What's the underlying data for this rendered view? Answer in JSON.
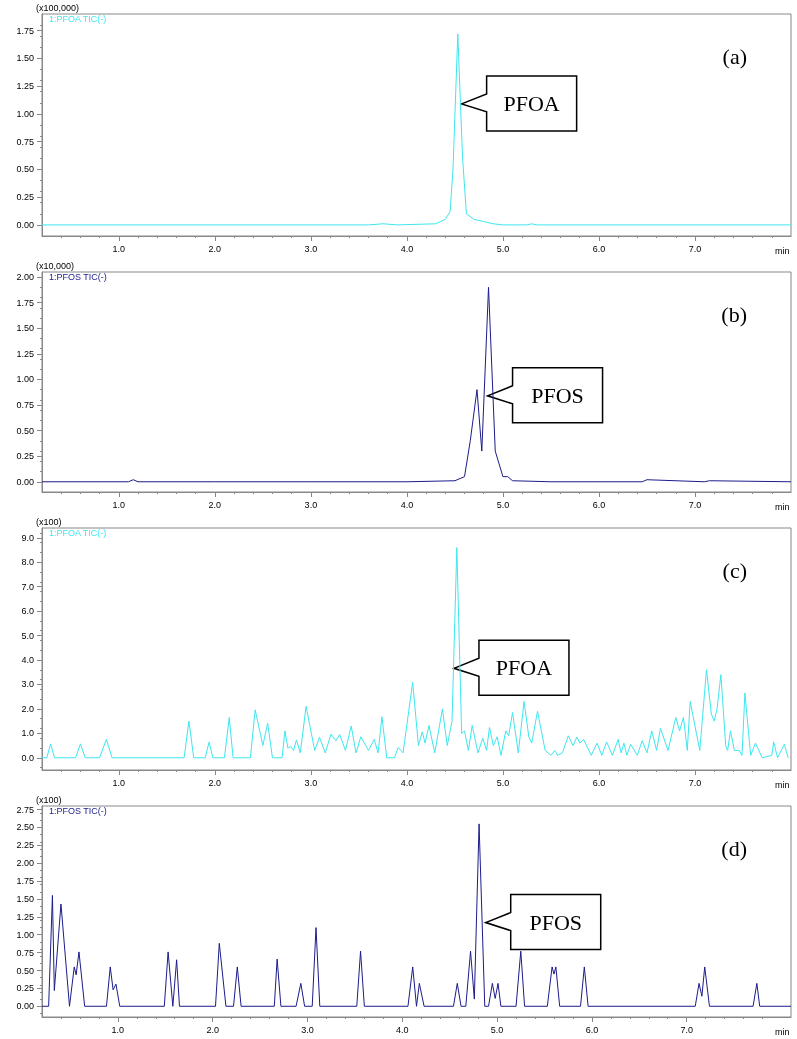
{
  "chart_data": [
    {
      "type": "line",
      "xlabel": "min",
      "ylabel": "(x100,000)",
      "legend": "top left",
      "marker": "none",
      "line_style": "solid",
      "grid": false,
      "xlim": [
        0.2,
        8.0
      ],
      "xticks": [
        {
          "value": 1,
          "label": "1.0"
        },
        {
          "value": 2,
          "label": "2.0"
        },
        {
          "value": 3,
          "label": "3.0"
        },
        {
          "value": 4,
          "label": "4.0"
        },
        {
          "value": 5,
          "label": "5.0"
        },
        {
          "value": 6,
          "label": "6.0"
        },
        {
          "value": 7,
          "label": "7.0"
        }
      ],
      "ylim": [
        -0.1,
        1.9
      ],
      "yticks": [
        {
          "value": 0,
          "label": "0.00"
        },
        {
          "value": 0.25,
          "label": "0.25"
        },
        {
          "value": 0.5,
          "label": "0.50"
        },
        {
          "value": 0.75,
          "label": "0.75"
        },
        {
          "value": 1,
          "label": "1.00"
        },
        {
          "value": 1.25,
          "label": "1.25"
        },
        {
          "value": 1.5,
          "label": "1.50"
        },
        {
          "value": 1.75,
          "label": "1.75"
        }
      ],
      "annotations": [
        "(a)",
        {
          "text": "PFOA",
          "x": 4.57,
          "y": 1.09
        }
      ],
      "series": [
        {
          "name": "1:PFOA TIC(-)",
          "color": "#3ee6ee",
          "x": [
            0.2,
            1.0,
            2.0,
            3.0,
            3.6,
            3.75,
            3.9,
            4.3,
            4.4,
            4.45,
            4.48,
            4.53,
            4.58,
            4.62,
            4.7,
            4.8,
            4.9,
            5.0,
            5.25,
            5.3,
            5.35,
            6.0,
            7.0,
            8.0
          ],
          "values": [
            0,
            0,
            0,
            0,
            0,
            0.01,
            0,
            0.01,
            0.05,
            0.12,
            0.5,
            1.72,
            0.6,
            0.1,
            0.05,
            0.03,
            0.01,
            0,
            0,
            0.01,
            0,
            0,
            0,
            0
          ]
        }
      ]
    },
    {
      "type": "line",
      "xlabel": "min",
      "ylabel": "(x10,000)",
      "legend": "top left",
      "marker": "none",
      "line_style": "solid",
      "grid": false,
      "xlim": [
        0.2,
        8.0
      ],
      "xticks": [
        {
          "value": 1,
          "label": "1.0"
        },
        {
          "value": 2,
          "label": "2.0"
        },
        {
          "value": 3,
          "label": "3.0"
        },
        {
          "value": 4,
          "label": "4.0"
        },
        {
          "value": 5,
          "label": "5.0"
        },
        {
          "value": 6,
          "label": "6.0"
        },
        {
          "value": 7,
          "label": "7.0"
        }
      ],
      "ylim": [
        -0.1,
        2.05
      ],
      "yticks": [
        {
          "value": 0,
          "label": "0.00"
        },
        {
          "value": 0.25,
          "label": "0.25"
        },
        {
          "value": 0.5,
          "label": "0.50"
        },
        {
          "value": 0.75,
          "label": "0.75"
        },
        {
          "value": 1,
          "label": "1.00"
        },
        {
          "value": 1.25,
          "label": "1.25"
        },
        {
          "value": 1.5,
          "label": "1.50"
        },
        {
          "value": 1.75,
          "label": "1.75"
        },
        {
          "value": 2,
          "label": "2.00"
        }
      ],
      "annotations": [
        "(b)",
        {
          "text": "PFOS",
          "x": 4.84,
          "y": 0.84
        }
      ],
      "series": [
        {
          "name": "1:PFOS TIC(-)",
          "color": "#1c1c8a",
          "x": [
            0.2,
            1.1,
            1.15,
            1.2,
            2.0,
            3.0,
            4.0,
            4.5,
            4.6,
            4.66,
            4.73,
            4.78,
            4.85,
            4.92,
            5.0,
            5.05,
            5.1,
            5.5,
            6.0,
            6.45,
            6.5,
            7.1,
            7.15,
            8.0
          ],
          "values": [
            0,
            0,
            0.02,
            0,
            0,
            0,
            0,
            0.01,
            0.05,
            0.4,
            0.9,
            0.3,
            1.9,
            0.3,
            0.05,
            0.05,
            0.01,
            0,
            0,
            0,
            0.02,
            0,
            0.01,
            0
          ]
        }
      ]
    },
    {
      "type": "line",
      "xlabel": "min",
      "ylabel": "(x100)",
      "legend": "top left",
      "marker": "none",
      "line_style": "solid",
      "grid": false,
      "xlim": [
        0.2,
        8.0
      ],
      "xticks": [
        {
          "value": 1,
          "label": "1.0"
        },
        {
          "value": 2,
          "label": "2.0"
        },
        {
          "value": 3,
          "label": "3.0"
        },
        {
          "value": 4,
          "label": "4.0"
        },
        {
          "value": 5,
          "label": "5.0"
        },
        {
          "value": 6,
          "label": "6.0"
        },
        {
          "value": 7,
          "label": "7.0"
        }
      ],
      "ylim": [
        -0.5,
        9.4
      ],
      "yticks": [
        {
          "value": 0,
          "label": "0.0"
        },
        {
          "value": 1,
          "label": "1.0"
        },
        {
          "value": 2,
          "label": "2.0"
        },
        {
          "value": 3,
          "label": "3.0"
        },
        {
          "value": 4,
          "label": "4.0"
        },
        {
          "value": 5,
          "label": "5.0"
        },
        {
          "value": 6,
          "label": "6.0"
        },
        {
          "value": 7,
          "label": "7.0"
        },
        {
          "value": 8,
          "label": "8.0"
        },
        {
          "value": 9,
          "label": "9.0"
        }
      ],
      "annotations": [
        "(c)",
        {
          "text": "PFOA",
          "x": 4.49,
          "y": 3.66
        }
      ],
      "series": [
        {
          "name": "1:PFOA TIC(-)",
          "color": "#3ee6ee",
          "x": [
            0.2,
            0.25,
            0.29,
            0.33,
            0.55,
            0.6,
            0.65,
            0.8,
            0.87,
            0.93,
            1.68,
            1.73,
            1.78,
            1.9,
            1.94,
            1.98,
            2.1,
            2.15,
            2.19,
            2.37,
            2.42,
            2.5,
            2.55,
            2.6,
            2.7,
            2.73,
            2.76,
            2.79,
            2.82,
            2.85,
            2.89,
            2.95,
            3.04,
            3.09,
            3.15,
            3.21,
            3.26,
            3.3,
            3.36,
            3.42,
            3.47,
            3.52,
            3.6,
            3.66,
            3.7,
            3.74,
            3.79,
            3.87,
            3.91,
            3.96,
            4.06,
            4.12,
            4.16,
            4.19,
            4.23,
            4.29,
            4.37,
            4.42,
            4.47,
            4.52,
            4.57,
            4.6,
            4.64,
            4.68,
            4.74,
            4.79,
            4.83,
            4.86,
            4.9,
            4.94,
            4.98,
            5.03,
            5.06,
            5.1,
            5.16,
            5.22,
            5.27,
            5.3,
            5.36,
            5.44,
            5.5,
            5.54,
            5.57,
            5.62,
            5.68,
            5.73,
            5.77,
            5.8,
            5.84,
            5.92,
            5.98,
            6.03,
            6.08,
            6.14,
            6.2,
            6.23,
            6.26,
            6.29,
            6.33,
            6.4,
            6.45,
            6.5,
            6.55,
            6.6,
            6.64,
            6.72,
            6.8,
            6.84,
            6.88,
            6.92,
            6.95,
            7.05,
            7.12,
            7.17,
            7.2,
            7.23,
            7.27,
            7.32,
            7.34,
            7.37,
            7.41,
            7.46,
            7.49,
            7.52,
            7.58,
            7.63,
            7.7,
            7.8,
            7.82,
            7.86,
            7.93,
            7.97
          ],
          "values": [
            0,
            0,
            0.57,
            0,
            0,
            0.57,
            0,
            0,
            0.75,
            0,
            0,
            1.5,
            0,
            0,
            0.64,
            0,
            0,
            1.65,
            0,
            0,
            1.96,
            0.5,
            1.41,
            0,
            0,
            1.1,
            0.4,
            0.46,
            0.3,
            0.73,
            0.2,
            2.1,
            0.3,
            0.84,
            0.2,
            0.97,
            0.7,
            0.95,
            0.3,
            1.3,
            0.2,
            0.86,
            0.3,
            0.75,
            0.2,
            1.68,
            0,
            0,
            0.42,
            0.2,
            3.09,
            0.5,
            1.06,
            0.6,
            1.32,
            0.2,
            2.0,
            0.5,
            1.5,
            8.6,
            1.0,
            1.1,
            0.3,
            1.32,
            0.2,
            0.8,
            0.3,
            1.24,
            0.5,
            0.86,
            0.1,
            1.1,
            0.9,
            1.85,
            0.2,
            2.3,
            0.85,
            0.6,
            1.9,
            0.3,
            0.1,
            0.3,
            0.1,
            0.2,
            0.9,
            0.5,
            0.85,
            0.6,
            0.75,
            0.1,
            0.6,
            0.1,
            0.65,
            0.1,
            0.75,
            0.2,
            0.6,
            0.1,
            0.55,
            0.1,
            0.7,
            0.2,
            1.1,
            0.3,
            1.2,
            0.3,
            1.65,
            1.1,
            1.65,
            0.3,
            2.3,
            0.3,
            3.6,
            1.8,
            1.5,
            2.0,
            3.4,
            0.5,
            0.3,
            1.1,
            0.3,
            0.3,
            0.1,
            2.65,
            0.1,
            0.6,
            0,
            0.1,
            0.65,
            0,
            0.55,
            0
          ]
        }
      ]
    },
    {
      "type": "line",
      "xlabel": "min",
      "ylabel": "(x100)",
      "legend": "top left",
      "marker": "none",
      "line_style": "solid",
      "grid": false,
      "xlim": [
        0.2,
        8.1
      ],
      "xticks": [
        {
          "value": 1,
          "label": "1.0"
        },
        {
          "value": 2,
          "label": "2.0"
        },
        {
          "value": 3,
          "label": "3.0"
        },
        {
          "value": 4,
          "label": "4.0"
        },
        {
          "value": 5,
          "label": "5.0"
        },
        {
          "value": 6,
          "label": "6.0"
        },
        {
          "value": 7,
          "label": "7.0"
        }
      ],
      "ylim": [
        -0.15,
        2.8
      ],
      "yticks": [
        {
          "value": 0,
          "label": "0.00"
        },
        {
          "value": 0.25,
          "label": "0.25"
        },
        {
          "value": 0.5,
          "label": "0.50"
        },
        {
          "value": 0.75,
          "label": "0.75"
        },
        {
          "value": 1,
          "label": "1.00"
        },
        {
          "value": 1.25,
          "label": "1.25"
        },
        {
          "value": 1.5,
          "label": "1.50"
        },
        {
          "value": 1.75,
          "label": "1.75"
        },
        {
          "value": 2,
          "label": "2.00"
        },
        {
          "value": 2.25,
          "label": "2.25"
        },
        {
          "value": 2.5,
          "label": "2.50"
        },
        {
          "value": 2.75,
          "label": "2.75"
        }
      ],
      "annotations": [
        "(d)",
        {
          "text": "PFOS",
          "x": 4.88,
          "y": 1.17
        }
      ],
      "series": [
        {
          "name": "1:PFOS TIC(-)",
          "color": "#1c1c8a",
          "x": [
            0.2,
            0.27,
            0.31,
            0.33,
            0.4,
            0.49,
            0.54,
            0.56,
            0.59,
            0.65,
            0.88,
            0.92,
            0.95,
            0.98,
            1.02,
            1.49,
            1.53,
            1.58,
            1.62,
            1.65,
            2.03,
            2.07,
            2.14,
            2.22,
            2.26,
            2.3,
            2.65,
            2.68,
            2.72,
            2.88,
            2.93,
            2.97,
            3.05,
            3.09,
            3.13,
            3.52,
            3.56,
            3.6,
            4.06,
            4.11,
            4.15,
            4.18,
            4.23,
            4.54,
            4.58,
            4.62,
            4.67,
            4.72,
            4.76,
            4.81,
            4.87,
            4.91,
            4.95,
            4.98,
            5.01,
            5.04,
            5.2,
            5.25,
            5.29,
            5.53,
            5.58,
            5.6,
            5.62,
            5.66,
            5.88,
            5.92,
            5.96,
            7.09,
            7.13,
            7.16,
            7.19,
            7.24,
            7.7,
            7.74,
            7.77,
            8.1
          ],
          "values": [
            0,
            0,
            1.55,
            0.22,
            1.43,
            0,
            0.55,
            0.44,
            0.76,
            0,
            0,
            0.55,
            0.23,
            0.31,
            0,
            0,
            0.76,
            0,
            0.65,
            0,
            0,
            0.88,
            0,
            0,
            0.55,
            0,
            0,
            0.66,
            0,
            0,
            0.32,
            0,
            0,
            1.1,
            0,
            0,
            0.77,
            0,
            0,
            0.55,
            0,
            0.32,
            0,
            0,
            0.32,
            0,
            0,
            0.77,
            0.1,
            2.55,
            0,
            0,
            0.32,
            0.11,
            0.32,
            0,
            0,
            0.77,
            0,
            0,
            0.55,
            0.45,
            0.55,
            0,
            0,
            0.55,
            0,
            0,
            0.32,
            0.14,
            0.55,
            0,
            0,
            0.32,
            0,
            0
          ]
        }
      ]
    }
  ]
}
